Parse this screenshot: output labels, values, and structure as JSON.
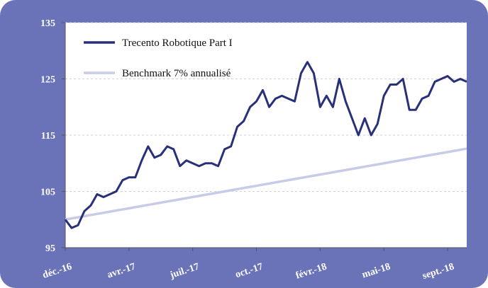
{
  "chart_data": {
    "type": "line",
    "series": [
      {
        "name": "Trecento Robotique Part I",
        "color": "#28307a",
        "values": [
          100,
          98.5,
          99,
          101.5,
          102.5,
          104.5,
          104,
          104.5,
          105,
          107,
          107.5,
          107.5,
          110.5,
          113,
          111,
          111.5,
          113,
          112.5,
          109.5,
          110.5,
          110,
          109.5,
          110,
          110,
          109.5,
          112.5,
          113,
          116.5,
          117.5,
          120,
          121,
          123,
          120,
          121.5,
          122,
          121.5,
          121,
          126,
          128,
          126,
          120,
          122,
          120,
          125,
          121,
          118,
          115,
          118,
          115,
          117,
          122,
          124,
          124,
          125,
          119.5,
          119.5,
          121.5,
          122,
          124.5,
          125,
          125.5,
          124.5,
          125,
          124.5
        ]
      },
      {
        "name": "Benchmark 7% annualisé",
        "color": "#c8cbe8",
        "values": [
          100,
          100.2,
          100.4,
          100.6,
          100.8,
          101,
          101.2,
          101.4,
          101.6,
          101.8,
          102,
          102.2,
          102.4,
          102.6,
          102.8,
          103,
          103.2,
          103.4,
          103.6,
          103.8,
          104,
          104.2,
          104.4,
          104.6,
          104.8,
          105,
          105.2,
          105.4,
          105.6,
          105.8,
          106,
          106.2,
          106.4,
          106.6,
          106.8,
          107,
          107.2,
          107.4,
          107.6,
          107.8,
          108,
          108.2,
          108.4,
          108.6,
          108.8,
          109,
          109.2,
          109.4,
          109.6,
          109.8,
          110,
          110.2,
          110.4,
          110.6,
          110.8,
          111,
          111.2,
          111.4,
          111.6,
          111.8,
          112,
          112.2,
          112.4,
          112.6
        ]
      }
    ],
    "xlim": [
      0,
      63
    ],
    "xticks": [
      {
        "value": 0,
        "label": "déc.-16"
      },
      {
        "value": 10,
        "label": "avr.-17"
      },
      {
        "value": 20,
        "label": "juil.-17"
      },
      {
        "value": 30,
        "label": "oct.-17"
      },
      {
        "value": 40,
        "label": "févr.-18"
      },
      {
        "value": 50,
        "label": "mai-18"
      },
      {
        "value": 60,
        "label": "sept.-18"
      }
    ],
    "ylim": [
      95,
      135
    ],
    "yticks": [
      95,
      105,
      115,
      125,
      135
    ],
    "grid": true,
    "legend": "top-left"
  }
}
